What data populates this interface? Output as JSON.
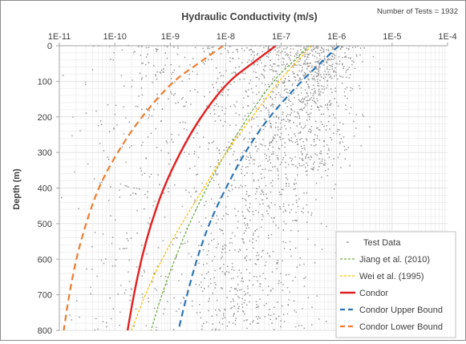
{
  "chart_data": {
    "type": "scatter",
    "title": "Hydraulic Conductivity (m/s)",
    "note": "Number of Tests = 1932",
    "xlabel": "Hydraulic Conductivity (m/s)",
    "ylabel": "Depth (m)",
    "x_scale": "log",
    "xlim": [
      1e-11,
      0.0001
    ],
    "ylim": [
      0,
      800
    ],
    "y_inverted": true,
    "x_ticks": [
      {
        "value": 1e-11,
        "label": "1E-11"
      },
      {
        "value": 1e-10,
        "label": "1E-10"
      },
      {
        "value": 1e-09,
        "label": "1E-9"
      },
      {
        "value": 1e-08,
        "label": "1E-8"
      },
      {
        "value": 1e-07,
        "label": "1E-7"
      },
      {
        "value": 1e-06,
        "label": "1E-6"
      },
      {
        "value": 1e-05,
        "label": "1E-5"
      },
      {
        "value": 0.0001,
        "label": "1E-4"
      }
    ],
    "y_ticks": [
      {
        "value": 0,
        "label": "0"
      },
      {
        "value": 100,
        "label": "100"
      },
      {
        "value": 200,
        "label": "200"
      },
      {
        "value": 300,
        "label": "300"
      },
      {
        "value": 400,
        "label": "400"
      },
      {
        "value": 500,
        "label": "500"
      },
      {
        "value": 600,
        "label": "600"
      },
      {
        "value": 700,
        "label": "700"
      },
      {
        "value": 800,
        "label": "800"
      }
    ],
    "grid": true,
    "legend_position": "bottom-right",
    "test_data": {
      "name": "Test Data",
      "color": "#9a9a9a",
      "count": 1932,
      "clusters": [
        {
          "log_k_center": -7.0,
          "log_k_spread": 1.1,
          "depth_max": 800,
          "weight": 0.55
        },
        {
          "log_k_center": -6.3,
          "log_k_spread": 0.7,
          "depth_max": 350,
          "weight": 0.25
        },
        {
          "log_k_center": -9.0,
          "log_k_spread": 1.3,
          "depth_max": 800,
          "weight": 0.2
        }
      ]
    },
    "series": [
      {
        "name": "Jiang et al. (2010)",
        "color": "#70ad47",
        "style": "dotted",
        "points": [
          [
            3.2e-07,
            0
          ],
          [
            1.5e-07,
            50
          ],
          [
            7e-08,
            100
          ],
          [
            2.5e-08,
            200
          ],
          [
            1e-08,
            300
          ],
          [
            4.5e-09,
            400
          ],
          [
            2.2e-09,
            500
          ],
          [
            1.2e-09,
            600
          ],
          [
            7e-10,
            700
          ],
          [
            4.5e-10,
            800
          ]
        ]
      },
      {
        "name": "Wei et al. (1995)",
        "color": "#ffc000",
        "style": "dotted",
        "points": [
          [
            3.5e-07,
            0
          ],
          [
            1.8e-07,
            50
          ],
          [
            9e-08,
            100
          ],
          [
            3e-08,
            200
          ],
          [
            1e-08,
            300
          ],
          [
            4e-09,
            400
          ],
          [
            1.6e-09,
            500
          ],
          [
            7e-10,
            600
          ],
          [
            3.5e-10,
            700
          ],
          [
            2e-10,
            800
          ]
        ]
      },
      {
        "name": "Condor",
        "color": "#e02020",
        "style": "solid",
        "points": [
          [
            8e-08,
            0
          ],
          [
            3e-08,
            50
          ],
          [
            1.1e-08,
            100
          ],
          [
            3.5e-09,
            200
          ],
          [
            1.5e-09,
            300
          ],
          [
            7.5e-10,
            400
          ],
          [
            4.5e-10,
            500
          ],
          [
            3e-10,
            600
          ],
          [
            2.2e-10,
            700
          ],
          [
            1.7e-10,
            800
          ]
        ]
      },
      {
        "name": "Condor Upper Bound",
        "color": "#2e75b6",
        "style": "dashed",
        "points": [
          [
            1.1e-06,
            0
          ],
          [
            5e-07,
            50
          ],
          [
            2.3e-07,
            100
          ],
          [
            6e-08,
            200
          ],
          [
            2.2e-08,
            300
          ],
          [
            1e-08,
            400
          ],
          [
            5e-09,
            500
          ],
          [
            3e-09,
            600
          ],
          [
            2e-09,
            700
          ],
          [
            1.4e-09,
            800
          ]
        ]
      },
      {
        "name": "Condor Lower Bound",
        "color": "#ed7d31",
        "style": "dashed",
        "points": [
          [
            9e-09,
            0
          ],
          [
            3.2e-09,
            50
          ],
          [
            1.1e-09,
            100
          ],
          [
            3e-10,
            200
          ],
          [
            1.1e-10,
            300
          ],
          [
            5e-11,
            400
          ],
          [
            3e-11,
            500
          ],
          [
            2e-11,
            600
          ],
          [
            1.5e-11,
            700
          ],
          [
            1.2e-11,
            800
          ]
        ]
      }
    ]
  }
}
